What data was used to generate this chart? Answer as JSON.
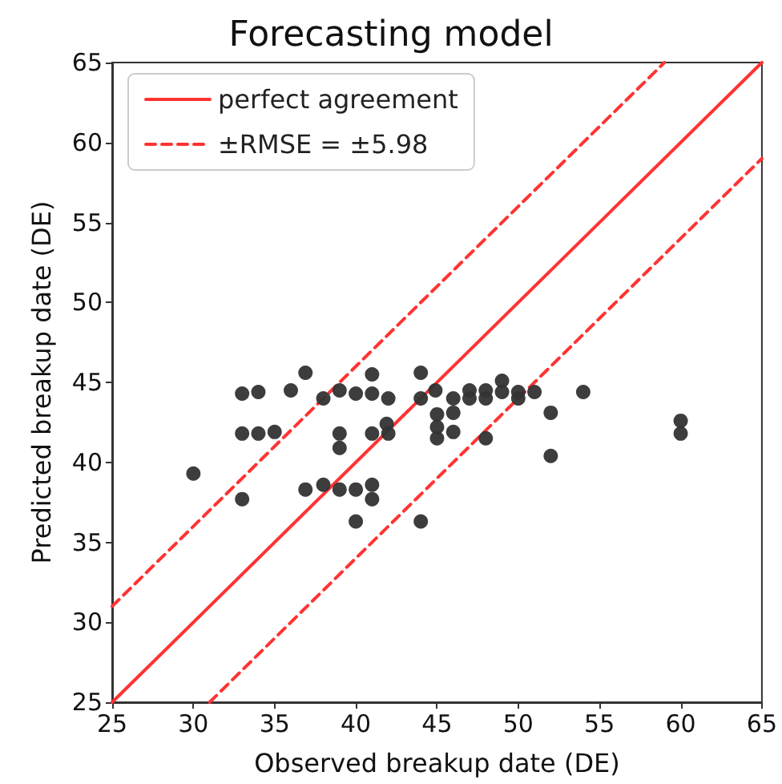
{
  "chart_data": {
    "type": "scatter",
    "title": "Forecasting model",
    "xlabel": "Observed breakup date (DE)",
    "ylabel": "Predicted breakup date (DE)",
    "xlim": [
      25,
      65
    ],
    "xticks": [
      25,
      30,
      35,
      40,
      45,
      50,
      55,
      60,
      65
    ],
    "ylim": [
      25,
      65
    ],
    "yticks": [
      25,
      30,
      35,
      40,
      45,
      50,
      55,
      60,
      65
    ],
    "grid": false,
    "legend": "top left",
    "marker": "circle",
    "series": [
      {
        "color": "#333333",
        "x": [
          36.9,
          41,
          44,
          33,
          34,
          36,
          38,
          39,
          40,
          41,
          42,
          44,
          41.9,
          33,
          34,
          35,
          39,
          39,
          41,
          42,
          30,
          33,
          36.9,
          38,
          39,
          40,
          41,
          41,
          40,
          44,
          44.9,
          45,
          45,
          45,
          46,
          46,
          46,
          47,
          47,
          48,
          48,
          48,
          49,
          49,
          50,
          50,
          51,
          52,
          52,
          54,
          60,
          60
        ],
        "values": [
          45.6,
          45.5,
          45.6,
          44.3,
          44.4,
          44.5,
          44,
          44.5,
          44.3,
          44.3,
          44,
          44,
          42.4,
          41.8,
          41.8,
          41.9,
          41.8,
          40.9,
          41.8,
          41.8,
          39.3,
          37.7,
          38.3,
          38.6,
          38.3,
          38.3,
          38.6,
          37.7,
          36.3,
          36.3,
          44.5,
          43,
          42.2,
          41.5,
          44,
          43.1,
          41.9,
          44.5,
          44,
          44.5,
          44,
          41.5,
          45.1,
          44.4,
          44.4,
          44,
          44.4,
          43.1,
          40.4,
          44.4,
          42.6,
          41.8
        ]
      },
      {
        "type": "line",
        "name": "perfect agreement",
        "color": "#ff3333",
        "line_style": "solid",
        "marker": "none",
        "x": [
          25,
          65
        ],
        "values": [
          25,
          65
        ]
      },
      {
        "type": "line",
        "name": "±RMSE = ±5.98",
        "color": "#ff3333",
        "line_style": "dashed",
        "marker": "none",
        "x": [
          25,
          59
        ],
        "values": [
          31,
          65
        ]
      },
      {
        "type": "line",
        "color": "#ff3333",
        "line_style": "dashed",
        "marker": "none",
        "x": [
          31,
          65
        ],
        "values": [
          25,
          59
        ]
      }
    ]
  }
}
